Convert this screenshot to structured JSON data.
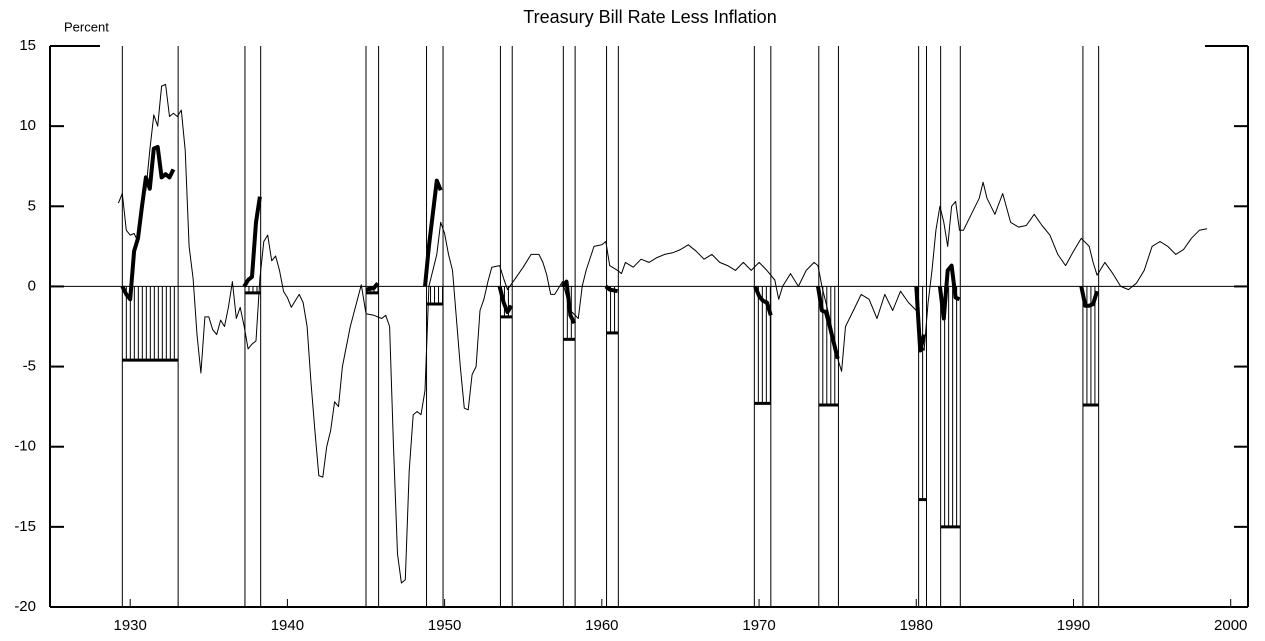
{
  "chart_data": {
    "type": "line",
    "title": "Treasury Bill Rate Less Inflation",
    "ylabel": "Percent",
    "xlim": [
      1924.9,
      2001.1
    ],
    "ylim": [
      -20,
      15
    ],
    "xticks": [
      1930,
      1940,
      1950,
      1960,
      1970,
      1980,
      1990,
      2000
    ],
    "yticks": [
      -20,
      -15,
      -10,
      -5,
      0,
      5,
      10,
      15
    ],
    "series": [
      {
        "color": "#000000",
        "width": 1,
        "x": [
          1929.25,
          1929.5,
          1929.75,
          1930,
          1930.25,
          1930.5,
          1930.75,
          1931,
          1931.25,
          1931.5,
          1931.75,
          1932,
          1932.25,
          1932.5,
          1932.75,
          1933,
          1933.25,
          1933.5,
          1933.75,
          1934,
          1934.25,
          1934.5,
          1934.75,
          1935,
          1935.25,
          1935.5,
          1935.75,
          1936,
          1936.25,
          1936.5,
          1936.75,
          1937,
          1937.25,
          1937.5,
          1937.75,
          1938,
          1938.25,
          1938.5,
          1938.75,
          1939,
          1939.25,
          1939.5,
          1939.75,
          1940,
          1940.25,
          1940.75,
          1941,
          1941.25,
          1941.5,
          1941.75,
          1942,
          1942.25,
          1942.5,
          1942.75,
          1943,
          1943.25,
          1943.5,
          1944,
          1944.7,
          1945,
          1945.5,
          1946,
          1946.25,
          1946.5,
          1946.75,
          1947,
          1947.25,
          1947.5,
          1947.75,
          1948,
          1948.25,
          1948.5,
          1948.75,
          1949,
          1949.5,
          1949.75,
          1950,
          1950.25,
          1950.5,
          1950.75,
          1951,
          1951.25,
          1951.5,
          1951.75,
          1952,
          1952.25,
          1952.5,
          1952.75,
          1953,
          1953.5,
          1953.75,
          1954,
          1954.5,
          1955,
          1955.5,
          1956,
          1956.25,
          1956.5,
          1956.75,
          1957,
          1957.5,
          1958,
          1958.5,
          1958.75,
          1959,
          1959.5,
          1960,
          1960.25,
          1960.5,
          1961,
          1961.25,
          1961.5,
          1962,
          1962.5,
          1963,
          1963.5,
          1964,
          1964.5,
          1965,
          1965.5,
          1966,
          1966.5,
          1967,
          1967.5,
          1968,
          1968.5,
          1969,
          1969.5,
          1970,
          1970.5,
          1971,
          1971.25,
          1971.5,
          1972,
          1972.5,
          1973,
          1973.5,
          1973.75,
          1974,
          1974.5,
          1975,
          1975.25,
          1975.5,
          1976,
          1976.5,
          1977,
          1977.5,
          1978,
          1978.5,
          1979,
          1979.5,
          1980,
          1980.25,
          1980.5,
          1980.75,
          1981,
          1981.25,
          1981.5,
          1981.75,
          1982,
          1982.25,
          1982.5,
          1982.75,
          1983,
          1983.5,
          1984,
          1984.25,
          1984.5,
          1985,
          1985.5,
          1986,
          1986.5,
          1987,
          1987.5,
          1988,
          1988.5,
          1989,
          1989.5,
          1990,
          1990.5,
          1991,
          1991.25,
          1991.5,
          1992,
          1992.5,
          1993,
          1993.5,
          1994,
          1994.5,
          1995,
          1995.5,
          1996,
          1996.5,
          1997,
          1997.5,
          1998,
          1998.5
        ],
        "values": [
          5.2,
          5.8,
          3.5,
          3.2,
          3.3,
          2.8,
          5.5,
          6,
          8.5,
          10.7,
          10,
          12.5,
          12.6,
          10.6,
          10.8,
          10.6,
          11,
          8.5,
          2.5,
          0.5,
          -3,
          -5.4,
          -1.9,
          -1.9,
          -2.7,
          -3,
          -2.1,
          -2.5,
          -1.3,
          0.3,
          -2,
          -1.3,
          -2.5,
          -3.9,
          -3.6,
          -3.4,
          0.5,
          2.8,
          3.2,
          1.6,
          1.9,
          1,
          -0.3,
          -0.7,
          -1.3,
          -0.5,
          -1,
          -2.5,
          -6,
          -9,
          -11.8,
          -11.9,
          -10,
          -9,
          -7.2,
          -7.5,
          -5,
          -2.5,
          0.1,
          -1.7,
          -1.8,
          -2,
          -1.8,
          -2.5,
          -10,
          -16.7,
          -18.5,
          -18.3,
          -11.5,
          -8,
          -7.8,
          -8,
          -6.5,
          0,
          2,
          4,
          3.3,
          2,
          1,
          -2,
          -5,
          -7.6,
          -7.7,
          -5.5,
          -5,
          -1.5,
          -0.8,
          0.3,
          1.2,
          1.3,
          0.5,
          -0.2,
          0.5,
          1.2,
          2,
          2,
          1.5,
          0.7,
          -0.5,
          -0.5,
          0.3,
          -1.5,
          -2,
          0,
          1,
          2.5,
          2.6,
          2.8,
          1.3,
          1,
          0.8,
          1.5,
          1.2,
          1.7,
          1.5,
          1.8,
          2,
          2.1,
          2.3,
          2.6,
          2.2,
          1.7,
          2,
          1.5,
          1.3,
          1,
          1.5,
          1,
          1.5,
          1,
          0.4,
          -0.8,
          0,
          0.8,
          0,
          1,
          1.5,
          1.3,
          0,
          -2,
          -4.5,
          -5.3,
          -2.5,
          -1.5,
          -0.5,
          -0.8,
          -2,
          -0.5,
          -1.5,
          -0.3,
          -1,
          -1.5,
          -3.5,
          -4,
          -1,
          1,
          3.5,
          5,
          4,
          2.5,
          5,
          5.3,
          3.5,
          3.5,
          4.5,
          5.5,
          6.5,
          5.5,
          4.5,
          5.8,
          4,
          3.7,
          3.8,
          4.5,
          3.8,
          3.2,
          2,
          1.3,
          2.2,
          3,
          2.5,
          1.5,
          0.7,
          1.5,
          0.8,
          0,
          -0.2,
          0.2,
          1,
          2.5,
          2.8,
          2.5,
          2,
          2.3,
          3,
          3.5,
          3.6
        ]
      },
      {
        "color": "#000000",
        "width": 4,
        "x": [
          1929.5,
          1929.75,
          1930,
          1930.25,
          1930.5,
          1930.75,
          1931,
          1931.25,
          1931.5,
          1931.75,
          1932,
          1932.25,
          1932.5,
          1932.75,
          null,
          1937.25,
          1937.5,
          1937.75,
          1938,
          1938.25,
          null,
          1945,
          1945.5,
          1945.75,
          null,
          1948.75,
          1949,
          1949.5,
          1949.75,
          null,
          1953.5,
          1953.75,
          1954,
          1954.25,
          null,
          1957.5,
          1957.75,
          1958,
          1958.25,
          null,
          1960.25,
          1960.5,
          1961,
          null,
          1969.75,
          1970,
          1970.25,
          1970.5,
          1970.75,
          null,
          1973.75,
          1974,
          1974.25,
          1974.5,
          1975,
          null,
          1980,
          1980.25,
          1980.5,
          null,
          1981.5,
          1981.75,
          1982,
          1982.25,
          1982.5,
          1982.75,
          null,
          1990.5,
          1990.75,
          1991,
          1991.25,
          1991.5
        ],
        "values": [
          0,
          -0.5,
          -0.8,
          2.2,
          3,
          5,
          6.8,
          6.1,
          8.6,
          8.7,
          6.8,
          7,
          6.8,
          7.3,
          null,
          0,
          0.4,
          0.6,
          4,
          5.6,
          null,
          -0.2,
          -0.1,
          0.2,
          null,
          0,
          2.5,
          6.6,
          6,
          null,
          0,
          -1,
          -1.6,
          -1.2,
          null,
          0,
          0.3,
          -1.8,
          -2.3,
          null,
          0,
          -0.2,
          -0.3,
          null,
          0,
          -0.6,
          -0.9,
          -1,
          -1.8,
          null,
          0,
          -1.5,
          -1.6,
          -2.5,
          -4.5,
          null,
          0,
          -4,
          -3,
          null,
          0,
          -2,
          1,
          1.3,
          -0.7,
          -0.8,
          null,
          0,
          -1.2,
          -1.2,
          -1.1,
          -0.3
        ]
      }
    ],
    "recessions": [
      {
        "start": 1929.5,
        "end": 1933.05,
        "level": -4.6
      },
      {
        "start": 1937.3,
        "end": 1938.3,
        "level": -0.4
      },
      {
        "start": 1945.0,
        "end": 1945.8,
        "level": -0.4
      },
      {
        "start": 1948.85,
        "end": 1949.9,
        "level": -1.1
      },
      {
        "start": 1953.55,
        "end": 1954.3,
        "level": -1.9
      },
      {
        "start": 1957.55,
        "end": 1958.3,
        "level": -3.3
      },
      {
        "start": 1960.3,
        "end": 1961.05,
        "level": -2.9
      },
      {
        "start": 1969.7,
        "end": 1970.75,
        "level": -7.3
      },
      {
        "start": 1973.8,
        "end": 1975.05,
        "level": -7.4
      },
      {
        "start": 1980.15,
        "end": 1980.65,
        "level": -13.3
      },
      {
        "start": 1981.55,
        "end": 1982.8,
        "level": -15
      },
      {
        "start": 1990.6,
        "end": 1991.6,
        "level": -7.4
      }
    ]
  }
}
